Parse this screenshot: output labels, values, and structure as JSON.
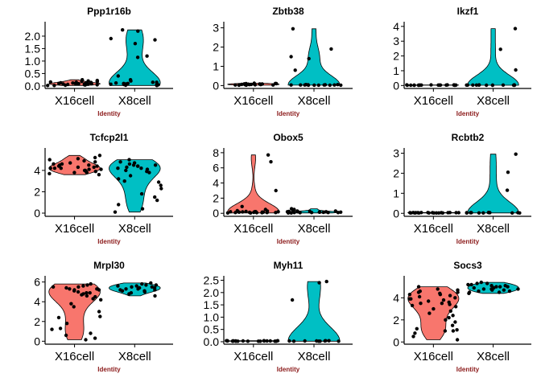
{
  "colors": {
    "X16cell": "#f8766d",
    "X8cell": "#00bfc4",
    "xlabel": "#8b1a1a"
  },
  "chart_data": [
    {
      "type": "violin",
      "title": "Ppp1r16b",
      "xlabel": "Identity",
      "categories": [
        "X16cell",
        "X8cell"
      ],
      "ylim": [
        -0.1,
        2.45
      ],
      "yticks": [
        "0.0",
        "0.5",
        "1.0",
        "1.5",
        "2.0"
      ],
      "series": [
        {
          "name": "X16cell",
          "points": [
            0.02,
            0.05,
            0.08,
            0.1,
            0.12,
            0.15,
            0.03,
            0.07,
            0.2,
            0.1,
            0.05,
            0.18,
            0.09,
            0.13,
            0.06,
            0.11,
            0.04,
            0.16,
            0.08,
            0.12,
            0.22,
            0.14,
            0.02,
            0.1,
            0.17,
            0.06,
            0.25,
            0.09
          ]
        },
        {
          "name": "X8cell",
          "points": [
            0.02,
            0.05,
            0.1,
            0.08,
            0.15,
            0.03,
            0.12,
            0.06,
            0.2,
            0.1,
            0.05,
            1.15,
            1.2,
            1.85,
            1.9,
            2.25,
            2.2,
            1.7,
            0.25,
            0.4,
            0.15,
            0.07
          ]
        }
      ]
    },
    {
      "type": "violin",
      "title": "Zbtb38",
      "xlabel": "Identity",
      "categories": [
        "X16cell",
        "X8cell"
      ],
      "ylim": [
        -0.15,
        3.15
      ],
      "yticks": [
        "0",
        "1",
        "2",
        "3"
      ],
      "series": [
        {
          "name": "X16cell",
          "points": [
            0.02,
            0.05,
            0.08,
            0.1,
            0.12,
            0.03,
            0.07,
            0.06,
            0.1,
            0.05,
            0.09,
            0.04,
            0.08,
            0.02,
            0.11,
            0.06,
            0.03,
            0.07,
            0.05,
            0.09
          ]
        },
        {
          "name": "X8cell",
          "points": [
            0.02,
            0.03,
            0.05,
            0.02,
            0.04,
            0.03,
            0.02,
            0.05,
            0.03,
            0.04,
            0.02,
            0.03,
            2.95,
            1.9,
            1.5,
            1.4,
            0.8,
            0.03,
            0.02
          ]
        }
      ]
    },
    {
      "type": "violin",
      "title": "Ikzf1",
      "xlabel": "Identity",
      "categories": [
        "X16cell",
        "X8cell"
      ],
      "ylim": [
        -0.2,
        4.1
      ],
      "yticks": [
        "0",
        "1",
        "2",
        "3",
        "4"
      ],
      "series": [
        {
          "name": "X16cell",
          "points": [
            0.02,
            0.03,
            0.02,
            0.04,
            0.03,
            0.02,
            0.03,
            0.04,
            0.02,
            0.03,
            0.02,
            0.04,
            0.03,
            0.02,
            0.03,
            0.02,
            0.04,
            0.03,
            0.02,
            0.03
          ]
        },
        {
          "name": "X8cell",
          "points": [
            0.02,
            0.03,
            0.04,
            0.02,
            0.03,
            0.02,
            0.04,
            0.03,
            0.02,
            0.03,
            3.85,
            2.45,
            1.05,
            0.03,
            0.02,
            0.03
          ]
        }
      ]
    },
    {
      "type": "violin",
      "title": "Tcfcp2l1",
      "xlabel": "Identity",
      "categories": [
        "X16cell",
        "X8cell"
      ],
      "ylim": [
        -0.3,
        5.8
      ],
      "yticks": [
        "0",
        "2",
        "4"
      ],
      "series": [
        {
          "name": "X16cell",
          "points": [
            5.4,
            5.1,
            4.9,
            4.6,
            4.5,
            4.4,
            4.3,
            4.2,
            4.1,
            4.0,
            3.9,
            3.8,
            3.7,
            4.6,
            4.4,
            4.2,
            4.0,
            3.9,
            5.0,
            4.8,
            4.3,
            4.1,
            3.6,
            4.5,
            4.7,
            4.2,
            3.8,
            5.2
          ]
        },
        {
          "name": "X8cell",
          "points": [
            5.0,
            4.8,
            4.6,
            4.5,
            4.4,
            4.3,
            4.2,
            4.1,
            4.0,
            3.9,
            3.5,
            3.2,
            3.0,
            2.6,
            2.3,
            1.8,
            1.5,
            1.2,
            0.8,
            0.4,
            0.1,
            4.7,
            4.4,
            3.8,
            2.9,
            4.5,
            4.2
          ]
        }
      ]
    },
    {
      "type": "violin",
      "title": "Obox5",
      "xlabel": "Identity",
      "categories": [
        "X16cell",
        "X8cell"
      ],
      "ylim": [
        -0.4,
        8.2
      ],
      "yticks": [
        "0",
        "2",
        "4",
        "6",
        "8"
      ],
      "series": [
        {
          "name": "X16cell",
          "points": [
            0.05,
            0.1,
            0.15,
            0.2,
            0.08,
            0.12,
            0.3,
            0.25,
            0.1,
            0.05,
            0.18,
            0.22,
            0.35,
            0.5,
            0.9,
            0.15,
            0.08,
            0.12,
            0.2,
            7.7,
            6.8,
            3.0,
            0.1,
            0.15,
            0.2
          ]
        },
        {
          "name": "X8cell",
          "points": [
            0.05,
            0.1,
            0.15,
            0.2,
            0.3,
            0.25,
            0.1,
            0.05,
            0.4,
            0.6,
            0.2,
            0.15,
            0.1,
            0.3,
            0.5,
            0.2,
            0.12,
            0.08,
            0.1,
            0.15,
            0.25
          ]
        }
      ]
    },
    {
      "type": "violin",
      "title": "Rcbtb2",
      "xlabel": "Identity",
      "categories": [
        "X16cell",
        "X8cell"
      ],
      "ylim": [
        -0.15,
        3.1
      ],
      "yticks": [
        "0",
        "1",
        "2",
        "3"
      ],
      "series": [
        {
          "name": "X16cell",
          "points": [
            0.02,
            0.03,
            0.04,
            0.02,
            0.03,
            0.02,
            0.04,
            0.03,
            0.02,
            0.03,
            0.02,
            0.04,
            0.03,
            0.02,
            0.03,
            0.02,
            0.04,
            0.03,
            0.02,
            0.03
          ]
        },
        {
          "name": "X8cell",
          "points": [
            0.02,
            0.03,
            0.04,
            0.02,
            0.03,
            0.02,
            0.04,
            0.03,
            0.02,
            2.95,
            2.05,
            1.15,
            0.03,
            0.02,
            0.03
          ]
        }
      ]
    },
    {
      "type": "violin",
      "title": "Mrpl30",
      "xlabel": "Identity",
      "categories": [
        "X16cell",
        "X8cell"
      ],
      "ylim": [
        -0.3,
        6.3
      ],
      "yticks": [
        "0",
        "2",
        "4",
        "6"
      ],
      "series": [
        {
          "name": "X16cell",
          "points": [
            5.8,
            5.6,
            5.5,
            5.4,
            5.3,
            5.2,
            5.1,
            5.0,
            4.9,
            4.8,
            4.7,
            4.6,
            4.5,
            4.3,
            4.2,
            3.8,
            3.5,
            3.0,
            2.5,
            1.8,
            1.2,
            0.6,
            0.3,
            0.15,
            5.7,
            5.2,
            4.9,
            2.4,
            1.3,
            0.8,
            5.5,
            5.3
          ]
        },
        {
          "name": "X8cell",
          "points": [
            5.9,
            5.8,
            5.7,
            5.6,
            5.5,
            5.4,
            5.3,
            5.2,
            5.1,
            5.0,
            4.9,
            4.8,
            5.6,
            5.4,
            5.2,
            5.7,
            5.5,
            5.3,
            5.1,
            4.6
          ]
        }
      ]
    },
    {
      "type": "violin",
      "title": "Myh11",
      "xlabel": "Identity",
      "categories": [
        "X16cell",
        "X8cell"
      ],
      "ylim": [
        -0.1,
        2.55
      ],
      "yticks": [
        "0.0",
        "0.5",
        "1.0",
        "1.5",
        "2.0",
        "2.5"
      ],
      "series": [
        {
          "name": "X16cell",
          "points": [
            0.02,
            0.03,
            0.02,
            0.04,
            0.03,
            0.02,
            0.03,
            0.04,
            0.02,
            0.03,
            0.02,
            0.04,
            0.03,
            0.02,
            0.03,
            0.02,
            0.04,
            0.03,
            0.02,
            0.03
          ]
        },
        {
          "name": "X8cell",
          "points": [
            0.02,
            0.03,
            0.04,
            0.02,
            0.03,
            0.02,
            0.04,
            0.03,
            2.45,
            2.4,
            1.7,
            0.03,
            0.02
          ]
        }
      ]
    },
    {
      "type": "violin",
      "title": "Socs3",
      "xlabel": "Identity",
      "categories": [
        "X16cell",
        "X8cell"
      ],
      "ylim": [
        -0.2,
        5.7
      ],
      "yticks": [
        "0",
        "2",
        "4"
      ],
      "series": [
        {
          "name": "X16cell",
          "points": [
            5.0,
            4.8,
            4.6,
            4.5,
            4.4,
            4.3,
            4.2,
            4.1,
            4.0,
            3.9,
            3.8,
            3.7,
            3.6,
            3.5,
            3.4,
            3.3,
            3.2,
            3.0,
            2.8,
            2.6,
            2.4,
            2.2,
            2.0,
            1.8,
            1.5,
            1.2,
            1.0,
            0.8,
            0.5,
            0.2,
            4.7,
            4.3,
            3.9,
            3.5,
            1.1,
            1.0,
            4.5
          ]
        },
        {
          "name": "X8cell",
          "points": [
            5.4,
            5.3,
            5.2,
            5.1,
            5.0,
            4.9,
            4.8,
            4.7,
            4.6,
            4.5,
            4.4,
            5.2,
            5.0,
            4.8,
            4.6,
            5.1,
            4.9,
            4.7,
            5.3,
            4.5,
            4.8,
            5.0
          ]
        }
      ]
    }
  ]
}
